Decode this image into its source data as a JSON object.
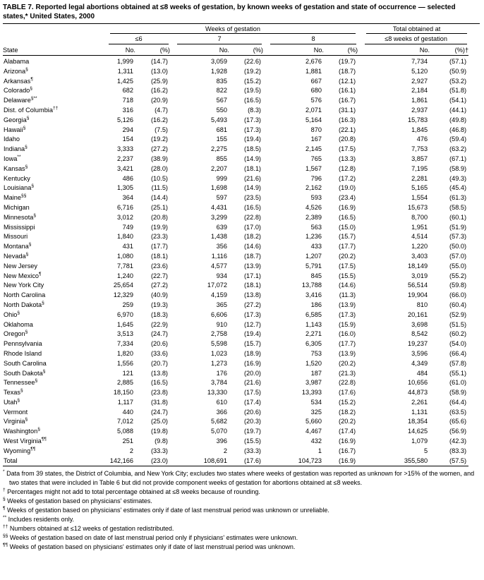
{
  "title": {
    "label": "TABLE 7.",
    "text": "Reported legal abortions obtained at ≤8 weeks of gestation, by known weeks of gestation and state of occurrence — selected states,* United States, 2000"
  },
  "header": {
    "group_weeks": "Weeks of gestation",
    "group_total": "Total obtained at",
    "state": "State",
    "sub_le6": "≤6",
    "sub_7": "7",
    "sub_8": "8",
    "sub_le8": "≤8 weeks of gestation",
    "no": "No.",
    "pct": "(%)",
    "pct_dagger": "(%)†"
  },
  "rows": [
    {
      "state": "Alabama",
      "sup": "",
      "total": false,
      "cells": [
        "1,999",
        "(14.7)",
        "3,059",
        "(22.6)",
        "2,676",
        "(19.7)",
        "7,734",
        "(57.1)"
      ]
    },
    {
      "state": "Arizona",
      "sup": "§",
      "total": false,
      "cells": [
        "1,311",
        "(13.0)",
        "1,928",
        "(19.2)",
        "1,881",
        "(18.7)",
        "5,120",
        "(50.9)"
      ]
    },
    {
      "state": "Arkansas",
      "sup": "¶",
      "total": false,
      "cells": [
        "1,425",
        "(25.9)",
        "835",
        "(15.2)",
        "667",
        "(12.1)",
        "2,927",
        "(53.2)"
      ]
    },
    {
      "state": "Colorado",
      "sup": "§",
      "total": false,
      "cells": [
        "682",
        "(16.2)",
        "822",
        "(19.5)",
        "680",
        "(16.1)",
        "2,184",
        "(51.8)"
      ]
    },
    {
      "state": "Delaware",
      "sup": "§**",
      "total": false,
      "cells": [
        "718",
        "(20.9)",
        "567",
        "(16.5)",
        "576",
        "(16.7)",
        "1,861",
        "(54.1)"
      ]
    },
    {
      "state": "Dist. of Columbia",
      "sup": "††",
      "total": false,
      "cells": [
        "316",
        "(4.7)",
        "550",
        "(8.3)",
        "2,071",
        "(31.1)",
        "2,937",
        "(44.1)"
      ]
    },
    {
      "state": "Georgia",
      "sup": "§",
      "total": false,
      "cells": [
        "5,126",
        "(16.2)",
        "5,493",
        "(17.3)",
        "5,164",
        "(16.3)",
        "15,783",
        "(49.8)"
      ]
    },
    {
      "state": "Hawaii",
      "sup": "§",
      "total": false,
      "cells": [
        "294",
        "(7.5)",
        "681",
        "(17.3)",
        "870",
        "(22.1)",
        "1,845",
        "(46.8)"
      ]
    },
    {
      "state": "Idaho",
      "sup": "",
      "total": false,
      "cells": [
        "154",
        "(19.2)",
        "155",
        "(19.4)",
        "167",
        "(20.8)",
        "476",
        "(59.4)"
      ]
    },
    {
      "state": "Indiana",
      "sup": "§",
      "total": false,
      "cells": [
        "3,333",
        "(27.2)",
        "2,275",
        "(18.5)",
        "2,145",
        "(17.5)",
        "7,753",
        "(63.2)"
      ]
    },
    {
      "state": "Iowa",
      "sup": "**",
      "total": false,
      "cells": [
        "2,237",
        "(38.9)",
        "855",
        "(14.9)",
        "765",
        "(13.3)",
        "3,857",
        "(67.1)"
      ]
    },
    {
      "state": "Kansas",
      "sup": "§",
      "total": false,
      "cells": [
        "3,421",
        "(28.0)",
        "2,207",
        "(18.1)",
        "1,567",
        "(12.8)",
        "7,195",
        "(58.9)"
      ]
    },
    {
      "state": "Kentucky",
      "sup": "",
      "total": false,
      "cells": [
        "486",
        "(10.5)",
        "999",
        "(21.6)",
        "796",
        "(17.2)",
        "2,281",
        "(49.3)"
      ]
    },
    {
      "state": "Louisiana",
      "sup": "§",
      "total": false,
      "cells": [
        "1,305",
        "(11.5)",
        "1,698",
        "(14.9)",
        "2,162",
        "(19.0)",
        "5,165",
        "(45.4)"
      ]
    },
    {
      "state": "Maine",
      "sup": "§§",
      "total": false,
      "cells": [
        "364",
        "(14.4)",
        "597",
        "(23.5)",
        "593",
        "(23.4)",
        "1,554",
        "(61.3)"
      ]
    },
    {
      "state": "Michigan",
      "sup": "",
      "total": false,
      "cells": [
        "6,716",
        "(25.1)",
        "4,431",
        "(16.5)",
        "4,526",
        "(16.9)",
        "15,673",
        "(58.5)"
      ]
    },
    {
      "state": "Minnesota",
      "sup": "§",
      "total": false,
      "cells": [
        "3,012",
        "(20.8)",
        "3,299",
        "(22.8)",
        "2,389",
        "(16.5)",
        "8,700",
        "(60.1)"
      ]
    },
    {
      "state": "Mississippi",
      "sup": "",
      "total": false,
      "cells": [
        "749",
        "(19.9)",
        "639",
        "(17.0)",
        "563",
        "(15.0)",
        "1,951",
        "(51.9)"
      ]
    },
    {
      "state": "Missouri",
      "sup": "",
      "total": false,
      "cells": [
        "1,840",
        "(23.3)",
        "1,438",
        "(18.2)",
        "1,236",
        "(15.7)",
        "4,514",
        "(57.3)"
      ]
    },
    {
      "state": "Montana",
      "sup": "§",
      "total": false,
      "cells": [
        "431",
        "(17.7)",
        "356",
        "(14.6)",
        "433",
        "(17.7)",
        "1,220",
        "(50.0)"
      ]
    },
    {
      "state": "Nevada",
      "sup": "§",
      "total": false,
      "cells": [
        "1,080",
        "(18.1)",
        "1,116",
        "(18.7)",
        "1,207",
        "(20.2)",
        "3,403",
        "(57.0)"
      ]
    },
    {
      "state": "New Jersey",
      "sup": "",
      "total": false,
      "cells": [
        "7,781",
        "(23.6)",
        "4,577",
        "(13.9)",
        "5,791",
        "(17.5)",
        "18,149",
        "(55.0)"
      ]
    },
    {
      "state": "New Mexico",
      "sup": "¶",
      "total": false,
      "cells": [
        "1,240",
        "(22.7)",
        "934",
        "(17.1)",
        "845",
        "(15.5)",
        "3,019",
        "(55.2)"
      ]
    },
    {
      "state": "New York City",
      "sup": "",
      "total": false,
      "cells": [
        "25,654",
        "(27.2)",
        "17,072",
        "(18.1)",
        "13,788",
        "(14.6)",
        "56,514",
        "(59.8)"
      ]
    },
    {
      "state": "North Carolina",
      "sup": "",
      "total": false,
      "cells": [
        "12,329",
        "(40.9)",
        "4,159",
        "(13.8)",
        "3,416",
        "(11.3)",
        "19,904",
        "(66.0)"
      ]
    },
    {
      "state": "North Dakota",
      "sup": "§",
      "total": false,
      "cells": [
        "259",
        "(19.3)",
        "365",
        "(27.2)",
        "186",
        "(13.9)",
        "810",
        "(60.4)"
      ]
    },
    {
      "state": "Ohio",
      "sup": "§",
      "total": false,
      "cells": [
        "6,970",
        "(18.3)",
        "6,606",
        "(17.3)",
        "6,585",
        "(17.3)",
        "20,161",
        "(52.9)"
      ]
    },
    {
      "state": "Oklahoma",
      "sup": "",
      "total": false,
      "cells": [
        "1,645",
        "(22.9)",
        "910",
        "(12.7)",
        "1,143",
        "(15.9)",
        "3,698",
        "(51.5)"
      ]
    },
    {
      "state": "Oregon",
      "sup": "§",
      "total": false,
      "cells": [
        "3,513",
        "(24.7)",
        "2,758",
        "(19.4)",
        "2,271",
        "(16.0)",
        "8,542",
        "(60.2)"
      ]
    },
    {
      "state": "Pennsylvania",
      "sup": "",
      "total": false,
      "cells": [
        "7,334",
        "(20.6)",
        "5,598",
        "(15.7)",
        "6,305",
        "(17.7)",
        "19,237",
        "(54.0)"
      ]
    },
    {
      "state": "Rhode Island",
      "sup": "",
      "total": false,
      "cells": [
        "1,820",
        "(33.6)",
        "1,023",
        "(18.9)",
        "753",
        "(13.9)",
        "3,596",
        "(66.4)"
      ]
    },
    {
      "state": "South Carolina",
      "sup": "",
      "total": false,
      "cells": [
        "1,556",
        "(20.7)",
        "1,273",
        "(16.9)",
        "1,520",
        "(20.2)",
        "4,349",
        "(57.8)"
      ]
    },
    {
      "state": "South Dakota",
      "sup": "§",
      "total": false,
      "cells": [
        "121",
        "(13.8)",
        "176",
        "(20.0)",
        "187",
        "(21.3)",
        "484",
        "(55.1)"
      ]
    },
    {
      "state": "Tennessee",
      "sup": "§",
      "total": false,
      "cells": [
        "2,885",
        "(16.5)",
        "3,784",
        "(21.6)",
        "3,987",
        "(22.8)",
        "10,656",
        "(61.0)"
      ]
    },
    {
      "state": "Texas",
      "sup": "§",
      "total": false,
      "cells": [
        "18,150",
        "(23.8)",
        "13,330",
        "(17.5)",
        "13,393",
        "(17.6)",
        "44,873",
        "(58.9)"
      ]
    },
    {
      "state": "Utah",
      "sup": "§",
      "total": false,
      "cells": [
        "1,117",
        "(31.8)",
        "610",
        "(17.4)",
        "534",
        "(15.2)",
        "2,261",
        "(64.4)"
      ]
    },
    {
      "state": "Vermont",
      "sup": "",
      "total": false,
      "cells": [
        "440",
        "(24.7)",
        "366",
        "(20.6)",
        "325",
        "(18.2)",
        "1,131",
        "(63.5)"
      ]
    },
    {
      "state": "Virginia",
      "sup": "§",
      "total": false,
      "cells": [
        "7,012",
        "(25.0)",
        "5,682",
        "(20.3)",
        "5,660",
        "(20.2)",
        "18,354",
        "(65.6)"
      ]
    },
    {
      "state": "Washington",
      "sup": "§",
      "total": false,
      "cells": [
        "5,088",
        "(19.8)",
        "5,070",
        "(19.7)",
        "4,467",
        "(17.4)",
        "14,625",
        "(56.9)"
      ]
    },
    {
      "state": "West Virginia",
      "sup": "¶¶",
      "total": false,
      "cells": [
        "251",
        "(9.8)",
        "396",
        "(15.5)",
        "432",
        "(16.9)",
        "1,079",
        "(42.3)"
      ]
    },
    {
      "state": "Wyoming",
      "sup": "¶¶",
      "total": false,
      "cells": [
        "2",
        "(33.3)",
        "2",
        "(33.3)",
        "1",
        "(16.7)",
        "5",
        "(83.3)"
      ]
    },
    {
      "state": "Total",
      "sup": "",
      "total": true,
      "cells": [
        "142,166",
        "(23.0)",
        "108,691",
        "(17.6)",
        "104,723",
        "(16.9)",
        "355,580",
        "(57.5)"
      ]
    }
  ],
  "footnotes": [
    {
      "sym": "*",
      "text": "Data from 39 states, the District of Columbia, and New York City; excludes two states where weeks of gestation was reported as unknown for >15% of the women, and two states that were included in Table 6 but did not provide component weeks of gestation for abortions obtained at ≤8 weeks."
    },
    {
      "sym": "†",
      "text": "Percentages might not add to total percentage obtained at ≤8 weeks because of rounding."
    },
    {
      "sym": "§",
      "text": "Weeks of gestation based on physicians' estimates."
    },
    {
      "sym": "¶",
      "text": "Weeks of gestation based on physicians' estimates only if date of last menstrual period was unknown or unreliable."
    },
    {
      "sym": "**",
      "text": "Includes residents only."
    },
    {
      "sym": "††",
      "text": "Numbers obtained at ≤12 weeks of gestation redistributed."
    },
    {
      "sym": "§§",
      "text": "Weeks of gestation based on date of last menstrual period only if physicians' estimates were unknown."
    },
    {
      "sym": "¶¶",
      "text": "Weeks of gestation based on physicians' estimates only if date of last menstrual period was unknown."
    }
  ]
}
